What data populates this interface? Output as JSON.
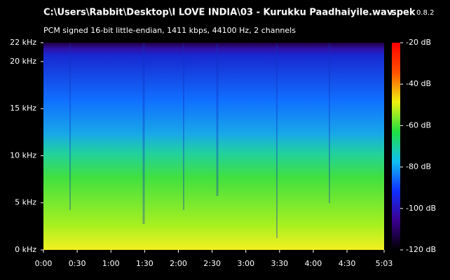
{
  "chart_data": {
    "type": "spectrogram",
    "title": "C:\\Users\\Rabbit\\Desktop\\I LOVE INDIA\\03 - Kurukku Paadhaiyile.wav",
    "subtitle": "PCM signed 16-bit little-endian, 1411 kbps, 44100 Hz, 2 channels",
    "brand": "spek",
    "version": "0.8.2",
    "xlim": [
      0,
      303
    ],
    "xticks": [
      {
        "value": 0,
        "label": "0:00"
      },
      {
        "value": 30,
        "label": "0:30"
      },
      {
        "value": 60,
        "label": "1:00"
      },
      {
        "value": 90,
        "label": "1:30"
      },
      {
        "value": 120,
        "label": "2:00"
      },
      {
        "value": 150,
        "label": "2:30"
      },
      {
        "value": 180,
        "label": "3:00"
      },
      {
        "value": 210,
        "label": "3:30"
      },
      {
        "value": 240,
        "label": "4:00"
      },
      {
        "value": 270,
        "label": "4:30"
      },
      {
        "value": 303,
        "label": "5:03"
      }
    ],
    "ylim": [
      0,
      22
    ],
    "yticks": [
      {
        "value": 0,
        "label": "0 kHz"
      },
      {
        "value": 5,
        "label": "5 kHz"
      },
      {
        "value": 10,
        "label": "10 kHz"
      },
      {
        "value": 15,
        "label": "15 kHz"
      },
      {
        "value": 20,
        "label": "20 kHz"
      },
      {
        "value": 22,
        "label": "22 kHz"
      }
    ],
    "clim": [
      -120,
      -20
    ],
    "cticks": [
      {
        "value": -20,
        "label": "-20 dB"
      },
      {
        "value": -40,
        "label": "-40 dB"
      },
      {
        "value": -60,
        "label": "-60 dB"
      },
      {
        "value": -80,
        "label": "-80 dB"
      },
      {
        "value": -100,
        "label": "-100 dB"
      },
      {
        "value": -120,
        "label": "-120 dB"
      }
    ],
    "colormap": [
      "#000000",
      "#3a0090",
      "#1030ff",
      "#10c0f0",
      "#20e040",
      "#f0f010",
      "#ff5000",
      "#ff0000"
    ]
  }
}
